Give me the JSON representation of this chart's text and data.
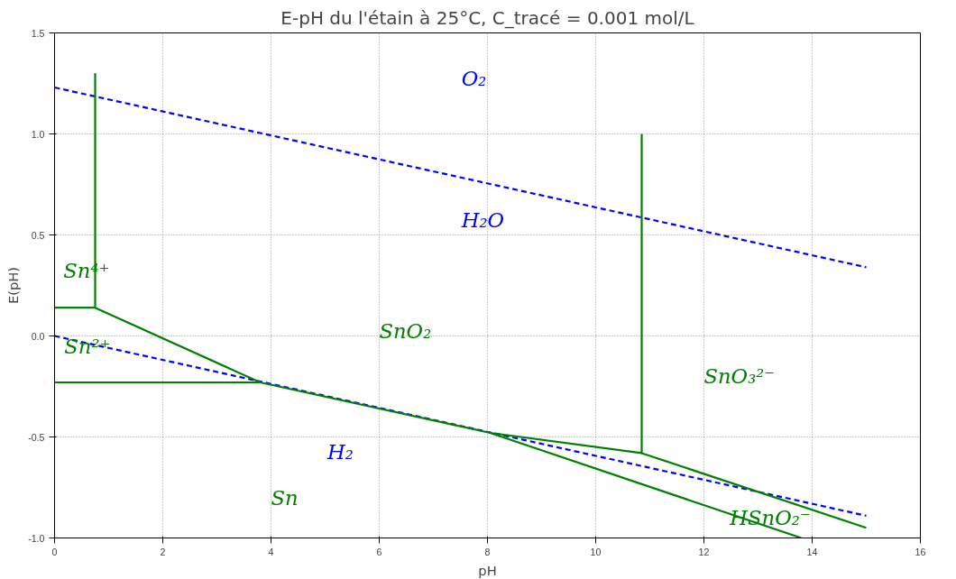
{
  "chart_data": {
    "type": "line",
    "title": "E-pH du l'étain à 25°C, C_tracé = 0.001 mol/L",
    "xlabel": "pH",
    "ylabel": "E(pH)",
    "xlim": [
      0,
      16
    ],
    "ylim": [
      -1.0,
      1.5
    ],
    "xticks": [
      0,
      2,
      4,
      6,
      8,
      10,
      12,
      14,
      16
    ],
    "yticks": [
      {
        "value": -1.0,
        "label": "-1.0"
      },
      {
        "value": -0.5,
        "label": "-0.5"
      },
      {
        "value": 0.0,
        "label": "0.0"
      },
      {
        "value": 0.5,
        "label": "0.5"
      },
      {
        "value": 1.0,
        "label": "1.0"
      },
      {
        "value": 1.5,
        "label": "1.5"
      }
    ],
    "grid": true,
    "marker": "none",
    "series": [
      {
        "color": "#0000ff",
        "line_style": "dashed",
        "x": [
          0,
          15
        ],
        "values": [
          1.23,
          0.34
        ]
      },
      {
        "color": "#0000ff",
        "line_style": "dashed",
        "x": [
          0,
          15
        ],
        "values": [
          0.0,
          -0.89
        ]
      },
      {
        "color": "#008000",
        "line_style": "solid",
        "x": [
          0,
          0.75,
          0.75
        ],
        "values": [
          0.14,
          0.14,
          1.3
        ]
      },
      {
        "color": "#008000",
        "line_style": "solid",
        "x": [
          0.75,
          3.8,
          8.05,
          10.85,
          10.85
        ],
        "values": [
          0.14,
          -0.23,
          -0.48,
          -0.58,
          1.0
        ]
      },
      {
        "color": "#008000",
        "line_style": "solid",
        "x": [
          0,
          3.8
        ],
        "values": [
          -0.23,
          -0.23
        ]
      },
      {
        "color": "#008000",
        "line_style": "solid",
        "x": [
          8.05,
          13.8
        ],
        "values": [
          -0.48,
          -1.0
        ]
      },
      {
        "color": "#008000",
        "line_style": "solid",
        "x": [
          10.85,
          15
        ],
        "values": [
          -0.58,
          -0.95
        ]
      }
    ],
    "annotations": [
      "O₂",
      "H₂O",
      "Sn⁴⁺",
      "Sn²⁺",
      "SnO₂",
      "SnO₃²⁻",
      "H₂",
      "Sn",
      "HSnO₂⁻"
    ]
  }
}
